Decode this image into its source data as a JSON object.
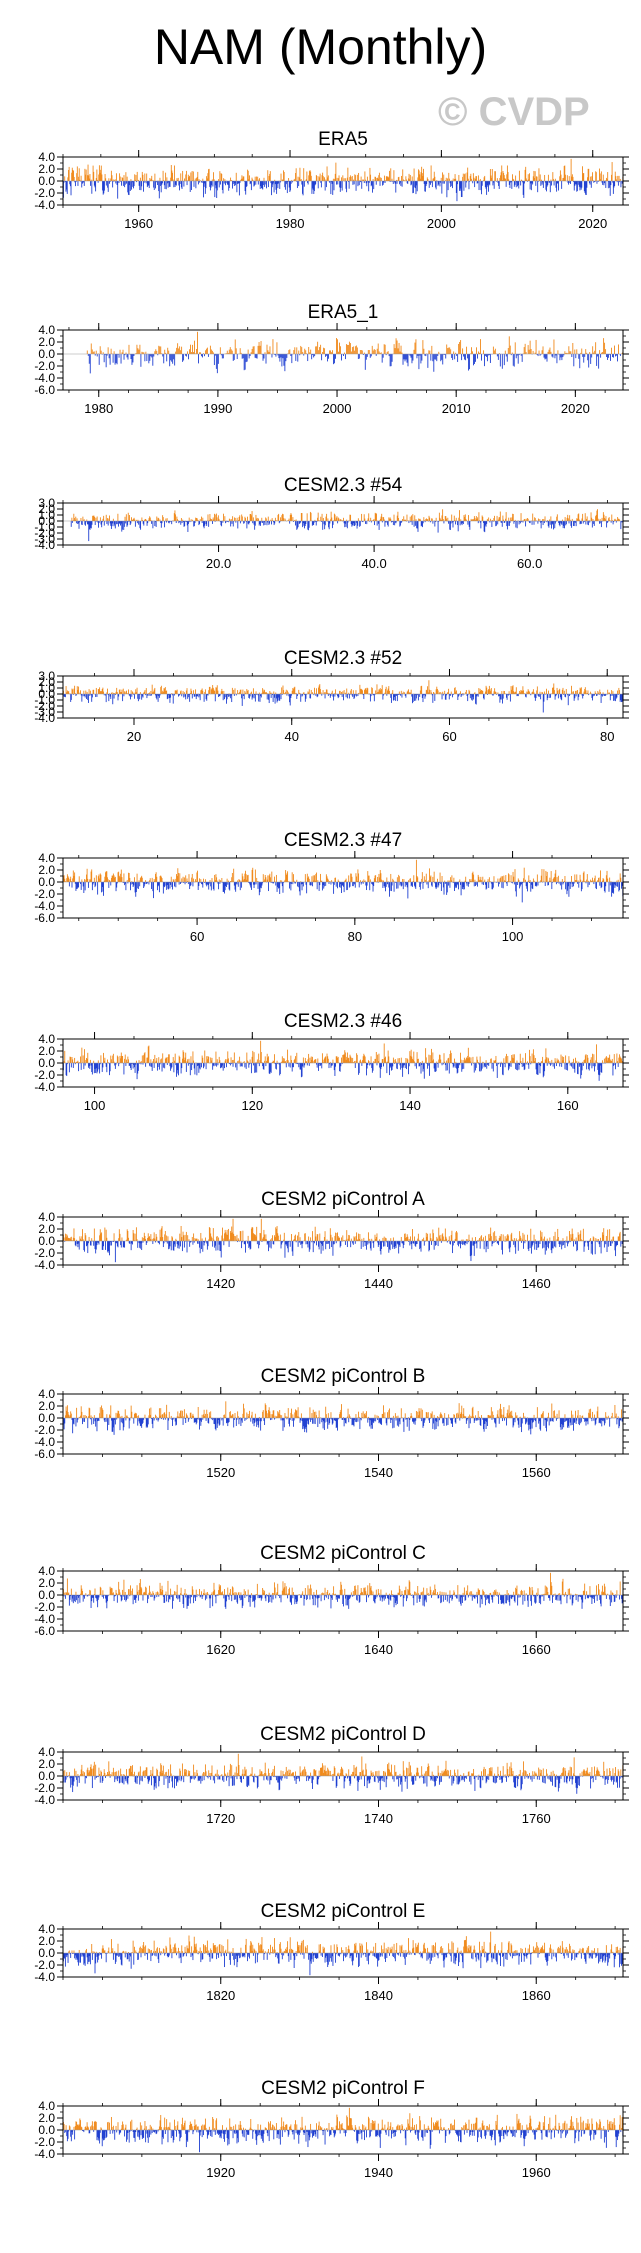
{
  "title": "NAM (Monthly)",
  "watermark": "© CVDP",
  "colors": {
    "positive": "#f08a1c",
    "negative": "#1f3fd1",
    "axis": "#000000",
    "text": "#000000"
  },
  "chart_data": [
    {
      "type": "bar",
      "title": "ERA5",
      "x_range": [
        1950,
        2024
      ],
      "ylim": [
        -4,
        4
      ],
      "yticks": [
        4,
        2,
        0,
        -2,
        -4
      ],
      "ytick_labels": [
        "4.0",
        "2.0",
        "0.0",
        "-2.0",
        "-4.0"
      ],
      "xticks": [
        1960,
        1980,
        2000,
        2020
      ],
      "xtick_labels": [
        "1960",
        "1980",
        "2000",
        "2020"
      ],
      "series_start": 1950,
      "series_end": 2024,
      "amp": 1.6
    },
    {
      "type": "bar",
      "title": "ERA5_1",
      "x_range": [
        1977,
        2024
      ],
      "ylim": [
        -6,
        4
      ],
      "yticks": [
        4,
        2,
        0,
        -2,
        -4,
        -6
      ],
      "ytick_labels": [
        "4.0",
        "2.0",
        "0.0",
        "-2.0",
        "-4.0",
        "-6.0"
      ],
      "xticks": [
        1980,
        1990,
        2000,
        2010,
        2020
      ],
      "xtick_labels": [
        "1980",
        "1990",
        "2000",
        "2010",
        "2020"
      ],
      "series_start": 1979,
      "series_end": 2024,
      "amp": 1.6
    },
    {
      "type": "bar",
      "title": "CESM2.3 #54",
      "x_range": [
        0,
        72
      ],
      "ylim": [
        -4,
        3
      ],
      "yticks": [
        3,
        2,
        1,
        0,
        -1,
        -2,
        -3,
        -4
      ],
      "ytick_labels": [
        "3.0",
        "2.0",
        "1.0",
        "0.0",
        "-1.0",
        "-2.0",
        "-3.0",
        "-4.0"
      ],
      "xticks": [
        20,
        40,
        60
      ],
      "xtick_labels": [
        "20.0",
        "40.0",
        "60.0"
      ],
      "series_start": 1,
      "series_end": 72,
      "amp": 1.0
    },
    {
      "type": "bar",
      "title": "CESM2.3 #52",
      "x_range": [
        11,
        82
      ],
      "ylim": [
        -4,
        3
      ],
      "yticks": [
        3,
        2,
        1,
        0,
        -1,
        -2,
        -3,
        -4
      ],
      "ytick_labels": [
        "3.0",
        "2.0",
        "1.0",
        "0.0",
        "-1.0",
        "-2.0",
        "-3.0",
        "-4.0"
      ],
      "xticks": [
        20,
        40,
        60,
        80
      ],
      "xtick_labels": [
        "20",
        "40",
        "60",
        "80"
      ],
      "series_start": 11,
      "series_end": 82,
      "amp": 1.0
    },
    {
      "type": "bar",
      "title": "CESM2.3 #47",
      "x_range": [
        43,
        114
      ],
      "ylim": [
        -6,
        4
      ],
      "yticks": [
        4,
        2,
        0,
        -2,
        -4,
        -6
      ],
      "ytick_labels": [
        "4.0",
        "2.0",
        "0.0",
        "-2.0",
        "-4.0",
        "-6.0"
      ],
      "xticks": [
        60,
        80,
        100
      ],
      "xtick_labels": [
        "60",
        "80",
        "100"
      ],
      "series_start": 43,
      "series_end": 114,
      "amp": 1.4
    },
    {
      "type": "bar",
      "title": "CESM2.3 #46",
      "x_range": [
        96,
        167
      ],
      "ylim": [
        -4,
        4
      ],
      "yticks": [
        4,
        2,
        0,
        -2,
        -4
      ],
      "ytick_labels": [
        "4.0",
        "2.0",
        "0.0",
        "-2.0",
        "-4.0"
      ],
      "xticks": [
        100,
        120,
        140,
        160
      ],
      "xtick_labels": [
        "100",
        "120",
        "140",
        "160"
      ],
      "series_start": 96,
      "series_end": 167,
      "amp": 1.5
    },
    {
      "type": "bar",
      "title": "CESM2 piControl A",
      "x_range": [
        1400,
        1471
      ],
      "ylim": [
        -4,
        4
      ],
      "yticks": [
        4,
        2,
        0,
        -2,
        -4
      ],
      "ytick_labels": [
        "4.0",
        "2.0",
        "0.0",
        "-2.0",
        "-4.0"
      ],
      "xticks": [
        1420,
        1440,
        1460
      ],
      "xtick_labels": [
        "1420",
        "1440",
        "1460"
      ],
      "series_start": 1400,
      "series_end": 1471,
      "amp": 1.5
    },
    {
      "type": "bar",
      "title": "CESM2 piControl B",
      "x_range": [
        1500,
        1571
      ],
      "ylim": [
        -6,
        4
      ],
      "yticks": [
        4,
        2,
        0,
        -2,
        -4,
        -6
      ],
      "ytick_labels": [
        "4.0",
        "2.0",
        "0.0",
        "-2.0",
        "-4.0",
        "-6.0"
      ],
      "xticks": [
        1520,
        1540,
        1560
      ],
      "xtick_labels": [
        "1520",
        "1540",
        "1560"
      ],
      "series_start": 1500,
      "series_end": 1571,
      "amp": 1.4
    },
    {
      "type": "bar",
      "title": "CESM2 piControl C",
      "x_range": [
        1600,
        1671
      ],
      "ylim": [
        -6,
        4
      ],
      "yticks": [
        4,
        2,
        0,
        -2,
        -4,
        -6
      ],
      "ytick_labels": [
        "4.0",
        "2.0",
        "0.0",
        "-2.0",
        "-4.0",
        "-6.0"
      ],
      "xticks": [
        1620,
        1640,
        1660
      ],
      "xtick_labels": [
        "1620",
        "1640",
        "1660"
      ],
      "series_start": 1600,
      "series_end": 1671,
      "amp": 1.4
    },
    {
      "type": "bar",
      "title": "CESM2 piControl D",
      "x_range": [
        1700,
        1771
      ],
      "ylim": [
        -4,
        4
      ],
      "yticks": [
        4,
        2,
        0,
        -2,
        -4
      ],
      "ytick_labels": [
        "4.0",
        "2.0",
        "0.0",
        "-2.0",
        "-4.0"
      ],
      "xticks": [
        1720,
        1740,
        1760
      ],
      "xtick_labels": [
        "1720",
        "1740",
        "1760"
      ],
      "series_start": 1700,
      "series_end": 1771,
      "amp": 1.5
    },
    {
      "type": "bar",
      "title": "CESM2 piControl E",
      "x_range": [
        1800,
        1871
      ],
      "ylim": [
        -4,
        4
      ],
      "yticks": [
        4,
        2,
        0,
        -2,
        -4
      ],
      "ytick_labels": [
        "4.0",
        "2.0",
        "0.0",
        "-2.0",
        "-4.0"
      ],
      "xticks": [
        1820,
        1840,
        1860
      ],
      "xtick_labels": [
        "1820",
        "1840",
        "1860"
      ],
      "series_start": 1800,
      "series_end": 1871,
      "amp": 1.5
    },
    {
      "type": "bar",
      "title": "CESM2 piControl F",
      "x_range": [
        1900,
        1971
      ],
      "ylim": [
        -4,
        4
      ],
      "yticks": [
        4,
        2,
        0,
        -2,
        -4
      ],
      "ytick_labels": [
        "4.0",
        "2.0",
        "0.0",
        "-2.0",
        "-4.0"
      ],
      "xticks": [
        1920,
        1940,
        1960
      ],
      "xtick_labels": [
        "1920",
        "1940",
        "1960"
      ],
      "series_start": 1900,
      "series_end": 1971,
      "amp": 1.5
    }
  ]
}
